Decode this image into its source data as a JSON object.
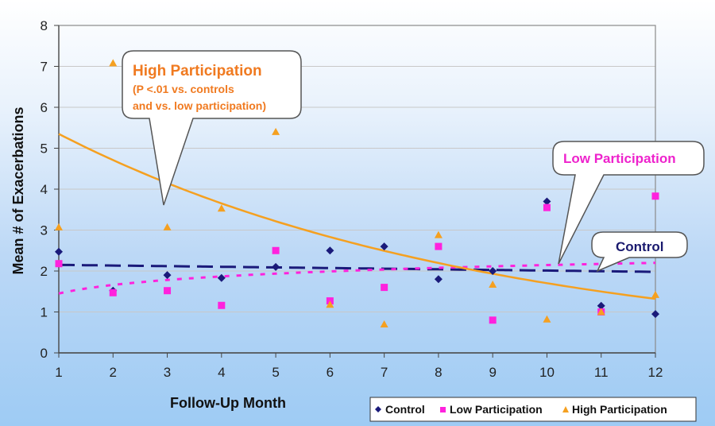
{
  "chart_data": {
    "type": "scatter",
    "title": "",
    "xlabel": "Follow-Up Month",
    "ylabel": "Mean # of Exacerbations",
    "xlim": [
      1,
      12
    ],
    "ylim": [
      0,
      8
    ],
    "x_ticks": [
      1,
      2,
      3,
      4,
      5,
      6,
      7,
      8,
      9,
      10,
      11,
      12
    ],
    "y_ticks": [
      0,
      1,
      2,
      3,
      4,
      5,
      6,
      7,
      8
    ],
    "grid": "horizontal",
    "legend_position": "bottom-right",
    "x": [
      1,
      2,
      3,
      4,
      5,
      6,
      7,
      8,
      9,
      10,
      11,
      12
    ],
    "series": [
      {
        "name": "Control",
        "marker": "diamond",
        "color": "#1a1a7a",
        "values": [
          2.47,
          1.52,
          1.9,
          1.83,
          2.1,
          2.5,
          2.6,
          1.8,
          2.0,
          3.7,
          1.15,
          0.95
        ],
        "trend": {
          "type": "linear",
          "style": "dashed",
          "start": 2.15,
          "end": 1.98
        }
      },
      {
        "name": "Low Participation",
        "marker": "square",
        "color": "#ff22dd",
        "values": [
          2.18,
          1.47,
          1.52,
          1.16,
          2.5,
          1.27,
          1.6,
          2.6,
          0.8,
          3.55,
          1.0,
          3.83
        ],
        "trend": {
          "type": "logarithmic",
          "style": "dotted",
          "start": 1.45,
          "end": 2.2
        }
      },
      {
        "name": "High Participation",
        "marker": "triangle",
        "color": "#f5a020",
        "values": [
          3.07,
          7.08,
          3.07,
          3.53,
          5.4,
          1.18,
          0.7,
          2.88,
          1.67,
          0.82,
          1.0,
          1.42
        ],
        "trend": {
          "type": "exponential",
          "style": "solid",
          "start": 5.35,
          "end": 1.32
        }
      }
    ],
    "annotations": [
      {
        "id": "high",
        "lines": [
          "High Participation",
          "(P <.01 vs. controls",
          "and vs. low participation)"
        ],
        "color": "#f07a20",
        "points_to_month": 3
      },
      {
        "id": "low",
        "lines": [
          "Low Participation"
        ],
        "color": "#ee22cc",
        "points_to_month": 10.2
      },
      {
        "id": "control",
        "lines": [
          "Control"
        ],
        "color": "#1a1a6e",
        "points_to_month": 10.5
      }
    ],
    "legend": [
      "Control",
      "Low Participation",
      "High Participation"
    ]
  }
}
